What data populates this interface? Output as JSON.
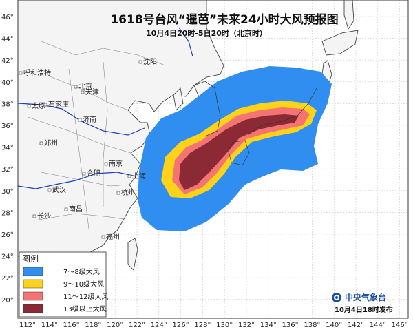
{
  "header": {
    "title": "1618号台风“暹芭”未来24小时大风预报图",
    "subtitle": "10月4日20时-5日20时（北京时）"
  },
  "axes": {
    "lon_labels": [
      "112°",
      "114°",
      "116°",
      "118°",
      "120°",
      "122°",
      "124°",
      "126°",
      "128°",
      "130°",
      "132°",
      "134°",
      "136°",
      "138°",
      "140°",
      "142°",
      "144°",
      "146°"
    ],
    "lat_labels": [
      "46°",
      "44°",
      "42°",
      "40°",
      "38°",
      "36°",
      "34°",
      "32°",
      "30°",
      "28°",
      "26°",
      "24°",
      "22°",
      "20°"
    ]
  },
  "cities": [
    {
      "name": "沈阳"
    },
    {
      "name": "呼和浩特"
    },
    {
      "name": "北京"
    },
    {
      "name": "天津"
    },
    {
      "name": "太原"
    },
    {
      "name": "石家庄"
    },
    {
      "name": "济南"
    },
    {
      "name": "郑州"
    },
    {
      "name": "合肥"
    },
    {
      "name": "南京"
    },
    {
      "name": "武汉"
    },
    {
      "name": "杭州"
    },
    {
      "name": "长沙"
    },
    {
      "name": "南昌"
    },
    {
      "name": "福州"
    },
    {
      "name": "上海"
    }
  ],
  "legend": {
    "title": "图例",
    "items": [
      {
        "label": "7～8级大风",
        "color": "#2f8ef0"
      },
      {
        "label": "9～10级大风",
        "color": "#ffd21a"
      },
      {
        "label": "11～12级大风",
        "color": "#f47373"
      },
      {
        "label": "13级以上大风",
        "color": "#8b2a35"
      }
    ]
  },
  "footer": {
    "org": "中央气象台",
    "issued": "10月4日18时发布"
  }
}
